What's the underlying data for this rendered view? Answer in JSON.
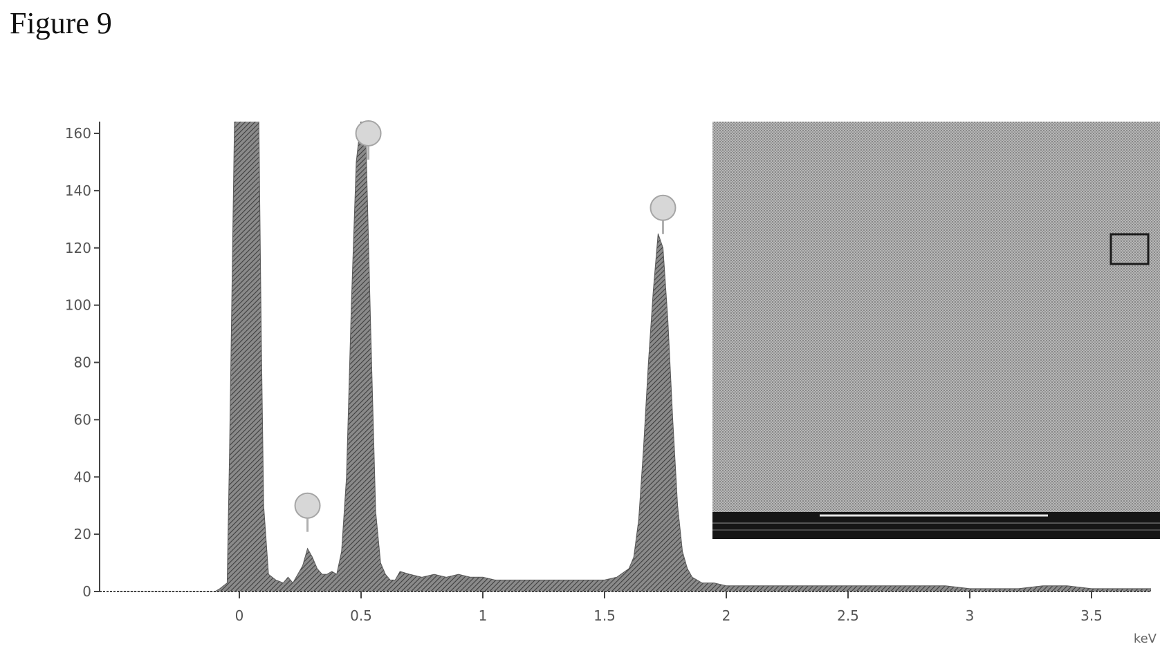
{
  "figure": {
    "label": "Figure 9"
  },
  "chart_data": {
    "type": "area",
    "xlabel": "",
    "ylabel": "",
    "x_unit": "keV",
    "xlim": [
      -0.5,
      3.8
    ],
    "ylim": [
      0,
      165
    ],
    "x_ticks": [
      0,
      0.5,
      1,
      1.5,
      2,
      2.5,
      3,
      3.5
    ],
    "x_tick_labels": [
      "0",
      "0.5",
      "1",
      "1.5",
      "2",
      "2.5",
      "3",
      "3.5"
    ],
    "y_ticks": [
      0,
      20,
      40,
      60,
      80,
      100,
      120,
      140,
      160
    ],
    "y_tick_labels": [
      "0",
      "20",
      "40",
      "60",
      "80",
      "100",
      "120",
      "140",
      "160"
    ],
    "grid": false,
    "legend": "none",
    "series": [
      {
        "x": [
          -0.5,
          -0.1,
          -0.08,
          -0.05,
          -0.04,
          -0.02,
          0.0,
          0.04,
          0.08,
          0.09,
          0.1,
          0.12,
          0.15,
          0.18,
          0.2,
          0.22,
          0.24,
          0.26,
          0.28,
          0.3,
          0.32,
          0.34,
          0.36,
          0.38,
          0.4,
          0.42,
          0.44,
          0.46,
          0.48,
          0.5,
          0.52,
          0.54,
          0.56,
          0.58,
          0.6,
          0.62,
          0.64,
          0.66,
          0.7,
          0.75,
          0.8,
          0.85,
          0.9,
          0.95,
          1.0,
          1.05,
          1.1,
          1.15,
          1.2,
          1.25,
          1.3,
          1.35,
          1.4,
          1.45,
          1.5,
          1.55,
          1.6,
          1.62,
          1.64,
          1.66,
          1.68,
          1.7,
          1.72,
          1.74,
          1.76,
          1.78,
          1.8,
          1.82,
          1.84,
          1.86,
          1.88,
          1.9,
          1.92,
          1.95,
          2.0,
          2.1,
          2.2,
          2.3,
          2.4,
          2.5,
          2.6,
          2.7,
          2.8,
          2.9,
          3.0,
          3.1,
          3.2,
          3.3,
          3.4,
          3.5,
          3.6,
          3.7,
          3.8
        ],
        "values": [
          0,
          0,
          1,
          3,
          50,
          165,
          165,
          165,
          165,
          90,
          30,
          6,
          4,
          3,
          5,
          3,
          6,
          9,
          15,
          12,
          8,
          6,
          6,
          7,
          6,
          14,
          40,
          100,
          150,
          165,
          158,
          90,
          28,
          10,
          6,
          4,
          4,
          7,
          6,
          5,
          6,
          5,
          6,
          5,
          5,
          4,
          4,
          4,
          4,
          4,
          4,
          4,
          4,
          4,
          4,
          5,
          8,
          12,
          25,
          50,
          80,
          105,
          125,
          120,
          95,
          60,
          30,
          14,
          8,
          5,
          4,
          3,
          3,
          3,
          2,
          2,
          2,
          2,
          2,
          2,
          2,
          2,
          2,
          2,
          1,
          1,
          1,
          2,
          2,
          1,
          1,
          1,
          1
        ]
      }
    ],
    "annotations": [
      {
        "x": 0.28,
        "y": 30
      },
      {
        "x": 0.53,
        "y": 160
      },
      {
        "x": 1.74,
        "y": 134
      }
    ]
  },
  "inset": {
    "description_tag": "sem-micrograph",
    "colors": {
      "background": "#c4c4c4",
      "dark_band": "#161616",
      "scale_line": "#e6e6e6"
    }
  },
  "colors": {
    "spectrum_fill": "#7a7a7a",
    "axis": "#444444",
    "marker_fill": "#d7d7d7",
    "marker_stroke": "#a5a5a5"
  }
}
